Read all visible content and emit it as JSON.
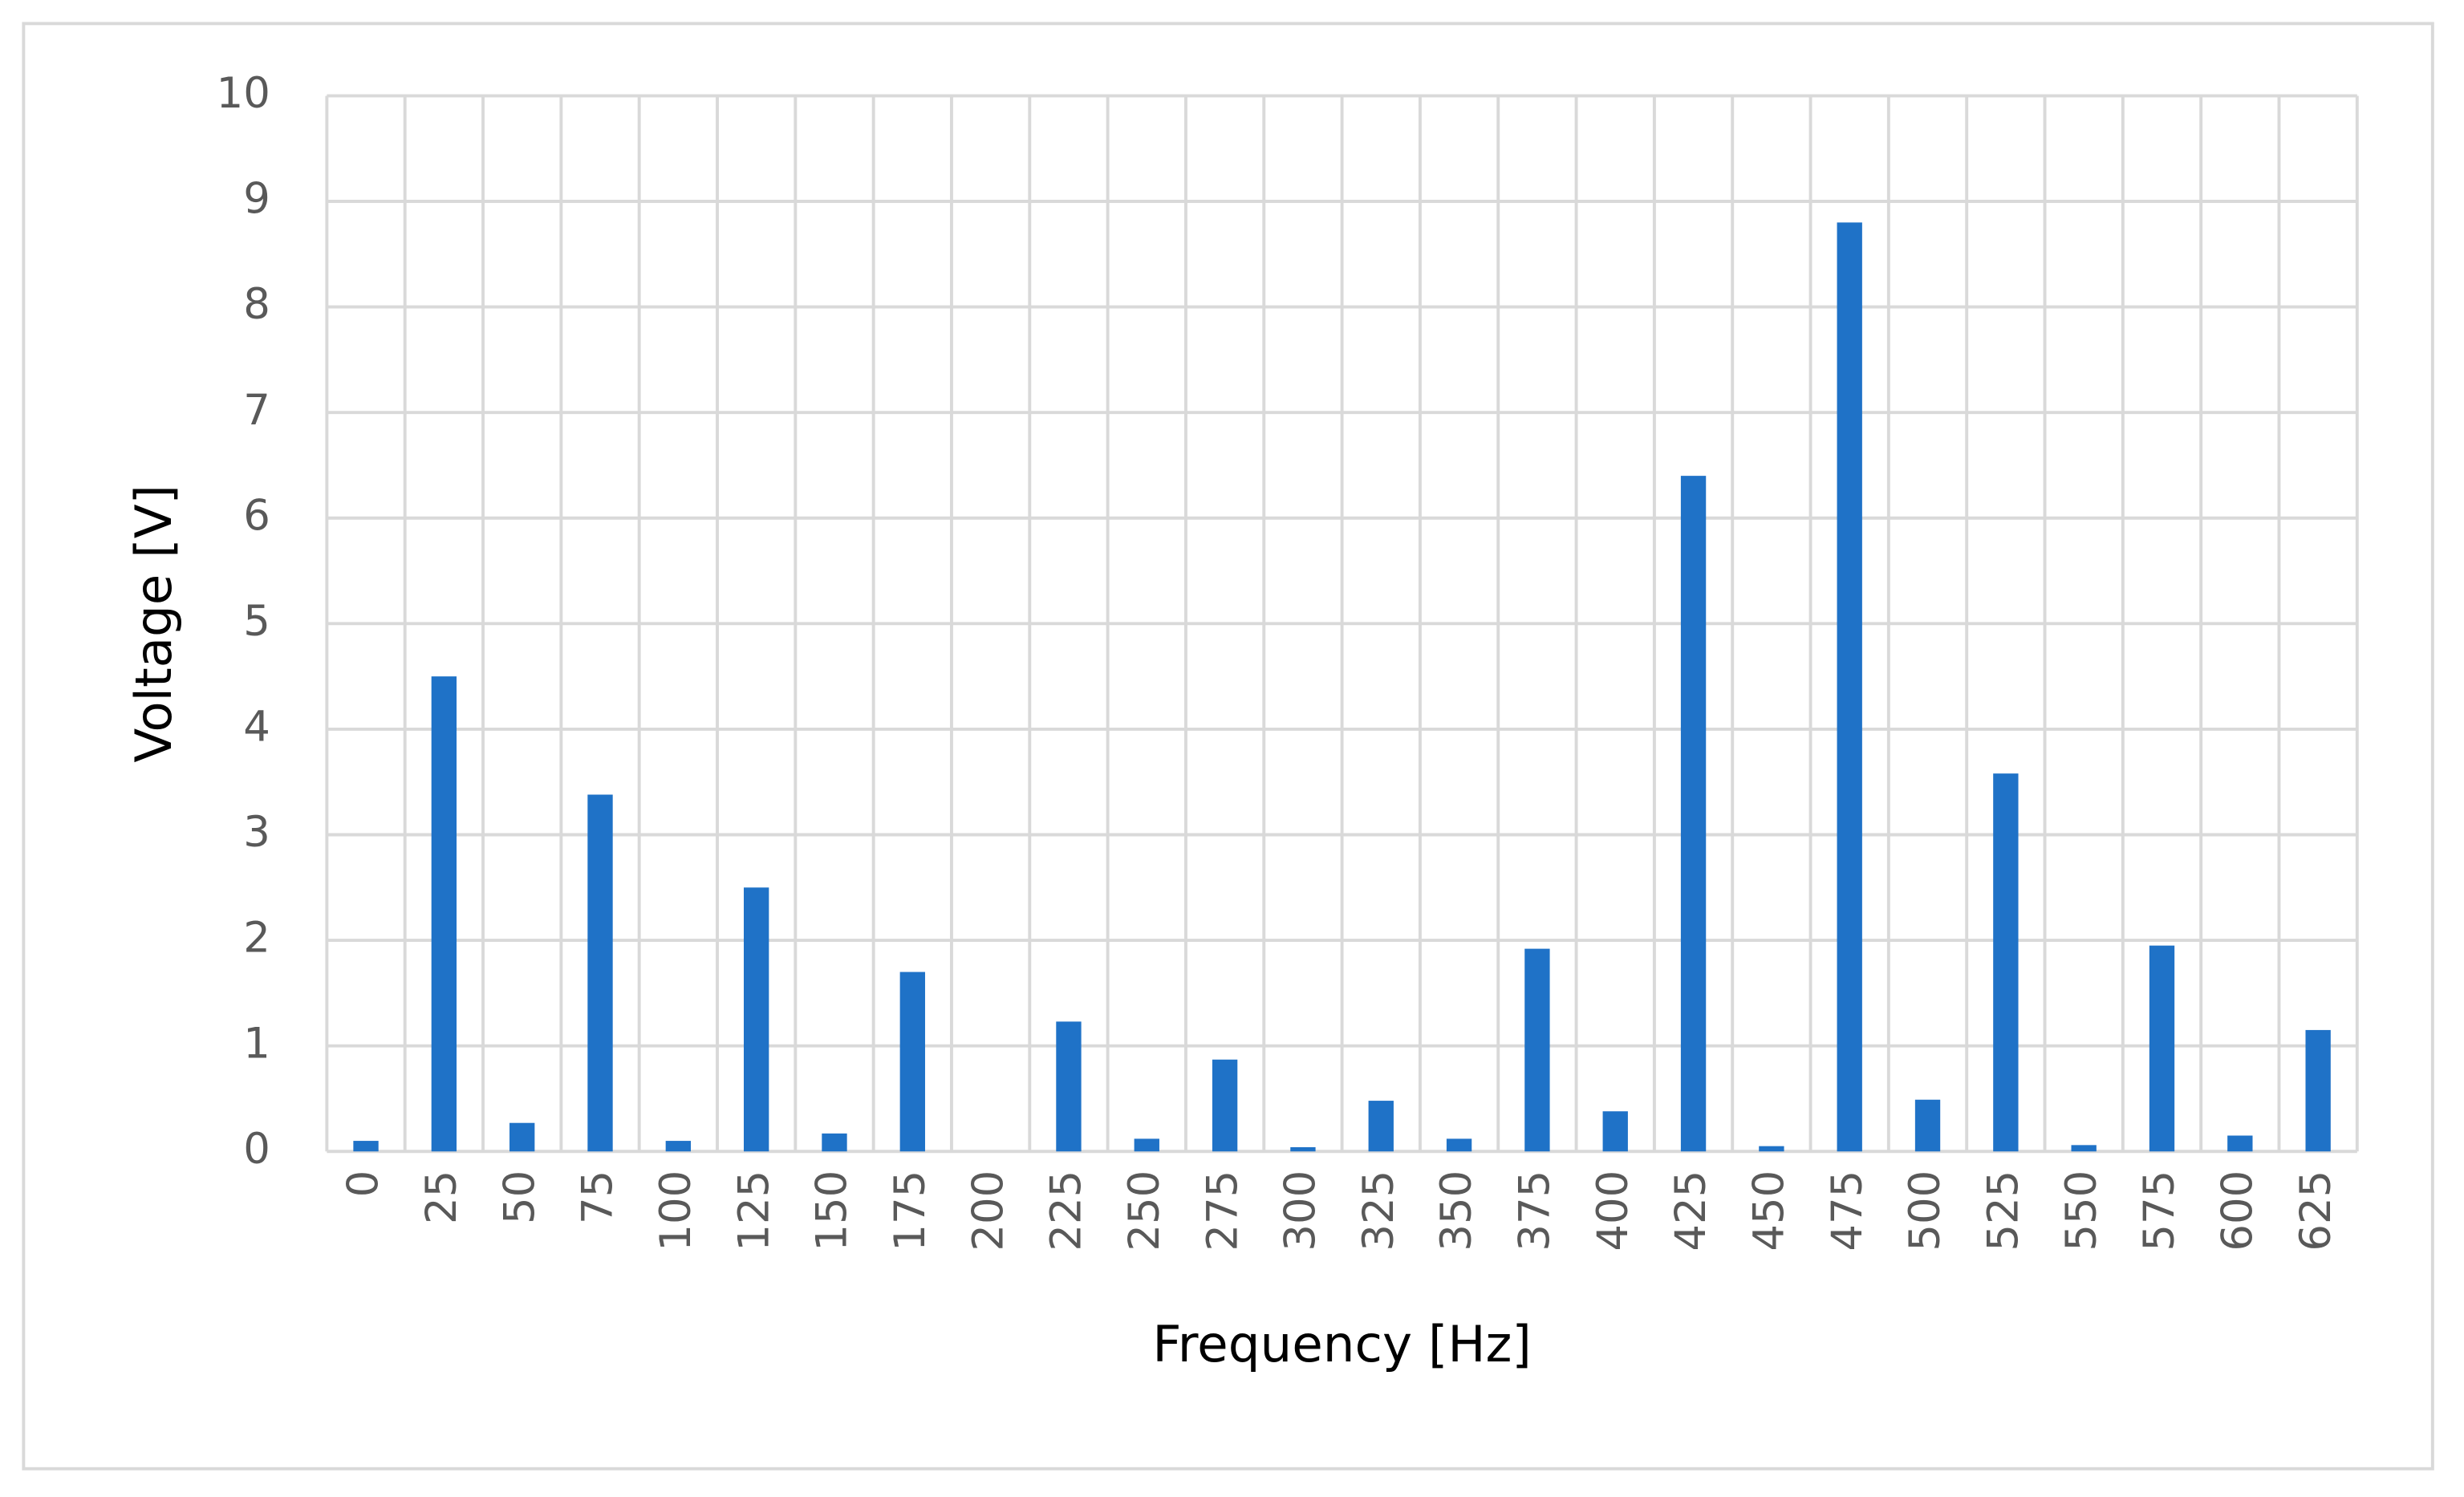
{
  "chart_data": {
    "type": "bar",
    "x_label": "Frequency [Hz]",
    "y_label": "Voltage [V]",
    "categories": [
      "0",
      "25",
      "50",
      "75",
      "100",
      "125",
      "150",
      "175",
      "200",
      "225",
      "250",
      "275",
      "300",
      "325",
      "350",
      "375",
      "400",
      "425",
      "450",
      "475",
      "500",
      "525",
      "550",
      "575",
      "600",
      "625"
    ],
    "values": [
      0.1,
      4.5,
      0.27,
      3.38,
      0.1,
      2.5,
      0.17,
      1.7,
      0,
      1.23,
      0.12,
      0.87,
      0.04,
      0.48,
      0.12,
      1.92,
      0.38,
      6.4,
      0.05,
      8.8,
      0.49,
      3.58,
      0.06,
      1.95,
      0.15,
      1.15
    ],
    "color": "#1f72c7",
    "ylim": [
      0,
      10
    ],
    "yticks": [
      0,
      1,
      2,
      3,
      4,
      5,
      6,
      7,
      8,
      9,
      10
    ],
    "grid": true
  }
}
